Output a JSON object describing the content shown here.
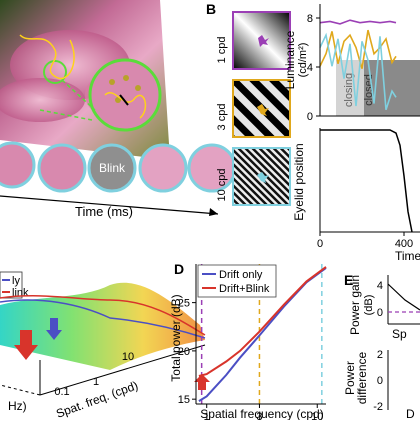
{
  "panels": {
    "B": {
      "letter": "B",
      "gratings": [
        {
          "label": "1 cpd",
          "color": "#9b3fb5"
        },
        {
          "label": "3 cpd",
          "color": "#e0a81c"
        },
        {
          "label": "10 cpd",
          "color": "#7fd0df"
        }
      ],
      "luminance_label": "Luminance",
      "luminance_unit": "(cd/m²)",
      "lum_ticks": [
        "8",
        "4",
        "0"
      ],
      "closing_label": "closing",
      "closed_label": "closed",
      "eyelid_label": "Eyelid position",
      "time_ticks": [
        "0",
        "400"
      ],
      "time_label": "Time"
    },
    "A_bottom": {
      "blink_label": "Blink",
      "time_axis_label": "Time (ms)"
    },
    "C_partial": {
      "legend_partial_1": "ly",
      "legend_partial_2": "link",
      "axis_freq_label": "Spat. freq. (cpd)",
      "axis_hz_label": "Hz)",
      "freq_ticks": [
        "0.1",
        "1",
        "10"
      ]
    },
    "D": {
      "letter": "D",
      "ylabel": "Total power (dB)",
      "xlabel": "Spatial frequency (cpd)",
      "y_ticks": [
        "25",
        "20",
        "15"
      ],
      "x_ticks": [
        "1",
        "3",
        "10"
      ],
      "legend": [
        {
          "label": "Drift only",
          "color": "#4b4fc4"
        },
        {
          "label": "Drift+Blink",
          "color": "#d8342b"
        }
      ]
    },
    "E": {
      "letter": "E",
      "ylabel_top": "Power gain",
      "unit_top": "(dB)",
      "ticks_top": [
        "4",
        "0"
      ],
      "xlabel_partial": "Sp",
      "ylabel_bottom": "Power",
      "ylabel_bottom_2": "difference",
      "ticks_bottom": [
        "2",
        "0",
        "-2"
      ],
      "letter_partial": "D"
    }
  },
  "chart_data": [
    {
      "type": "line",
      "panel": "B-luminance",
      "ylabel": "Luminance (cd/m²)",
      "x_range": [
        0,
        500
      ],
      "ylim": [
        0,
        9
      ],
      "series": [
        {
          "color": "#9b3fb5",
          "x": [
            0,
            50,
            100,
            150,
            200,
            250,
            300,
            350,
            380
          ],
          "values": [
            7.5,
            7.6,
            7.4,
            7.7,
            7.5,
            7.6,
            7.5,
            7.6,
            7.5
          ]
        },
        {
          "color": "#e0a81c",
          "x": [
            0,
            30,
            60,
            90,
            120,
            150,
            180,
            210,
            240,
            270,
            300,
            330,
            360,
            380
          ],
          "values": [
            4.0,
            5.0,
            6.8,
            4.2,
            6.0,
            6.5,
            5.5,
            3.8,
            6.9,
            5.0,
            5.5,
            6.2,
            4.3,
            4.8
          ]
        },
        {
          "color": "#7fd0df",
          "x": [
            0,
            30,
            60,
            90,
            120,
            150,
            180,
            210,
            240,
            270,
            300,
            330,
            360,
            380
          ],
          "values": [
            5.5,
            6.5,
            4.0,
            6.2,
            3.0,
            5.8,
            0.8,
            6.0,
            4.5,
            1.0,
            6.4,
            0.5,
            2.0,
            1.5
          ]
        }
      ]
    },
    {
      "type": "line",
      "panel": "B-eyelid",
      "ylabel": "Eyelid position",
      "xlabel": "Time",
      "x_range": [
        0,
        500
      ],
      "ylim": [
        0,
        1
      ],
      "series": [
        {
          "color": "#000000",
          "x": [
            0,
            350,
            380,
            400,
            420,
            440,
            460
          ],
          "values": [
            1,
            1,
            0.97,
            0.85,
            0.55,
            0.2,
            0
          ]
        }
      ]
    },
    {
      "type": "line",
      "panel": "D",
      "title": "",
      "xlabel": "Spatial frequency (cpd)",
      "ylabel": "Total power (dB)",
      "xscale": "log",
      "xlim": [
        0.8,
        12
      ],
      "ylim": [
        14.5,
        29
      ],
      "legend_position": "top-left",
      "series": [
        {
          "name": "Drift only",
          "x": [
            0.85,
            1,
            1.5,
            2,
            3,
            5,
            8,
            12
          ],
          "values": [
            14.8,
            15.3,
            17.5,
            19.3,
            21.6,
            24.6,
            27.1,
            28.6
          ]
        },
        {
          "name": "Drift+Blink",
          "x": [
            0.85,
            1,
            1.5,
            2,
            3,
            5,
            8,
            12
          ],
          "values": [
            17.4,
            17.6,
            18.9,
            20.0,
            22.0,
            24.8,
            27.2,
            28.7
          ]
        }
      ],
      "vlines": [
        {
          "x": 0.9,
          "color": "#9b3fb5"
        },
        {
          "x": 3,
          "color": "#e0a81c"
        },
        {
          "x": 11,
          "color": "#7fd0df"
        }
      ]
    }
  ]
}
